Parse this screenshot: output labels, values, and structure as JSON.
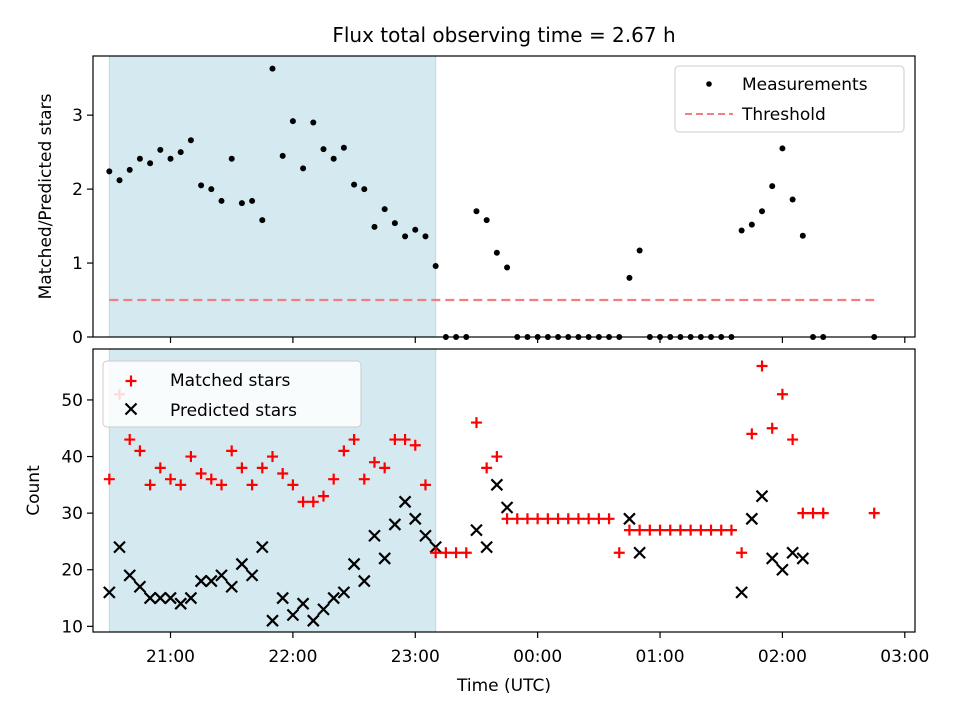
{
  "title": "Flux total observing time = 2.67 h",
  "chart_data": [
    {
      "type": "scatter",
      "panel": "top",
      "title": "Flux total observing time = 2.67 h",
      "xlabel": "",
      "ylabel": "Matched/Predicted stars",
      "xlim": [
        "20:22",
        "03:05"
      ],
      "ylim": [
        0,
        3.8
      ],
      "yticks": [
        0,
        1,
        2,
        3
      ],
      "shaded_interval": {
        "start": "20:30",
        "end": "23:10",
        "color": "#d4eaf0"
      },
      "legend": {
        "placement": "top-right",
        "entries": [
          "Measurements",
          "Threshold"
        ]
      },
      "series": [
        {
          "name": "Measurements",
          "color": "#000000",
          "marker": "dot",
          "time": [
            "20:30",
            "20:35",
            "20:40",
            "20:45",
            "20:50",
            "20:55",
            "21:00",
            "21:05",
            "21:10",
            "21:15",
            "21:20",
            "21:25",
            "21:30",
            "21:35",
            "21:40",
            "21:45",
            "21:50",
            "21:55",
            "22:00",
            "22:05",
            "22:10",
            "22:15",
            "22:20",
            "22:25",
            "22:30",
            "22:35",
            "22:40",
            "22:45",
            "22:50",
            "22:55",
            "23:00",
            "23:05",
            "23:10",
            "23:15",
            "23:20",
            "23:25",
            "23:30",
            "23:35",
            "23:40",
            "23:45",
            "23:50",
            "23:55",
            "00:00",
            "00:05",
            "00:10",
            "00:15",
            "00:20",
            "00:25",
            "00:30",
            "00:35",
            "00:40",
            "00:45",
            "00:50",
            "00:55",
            "01:00",
            "01:05",
            "01:10",
            "01:15",
            "01:20",
            "01:25",
            "01:30",
            "01:35",
            "01:40",
            "01:45",
            "01:50",
            "01:55",
            "02:00",
            "02:05",
            "02:10",
            "02:15",
            "02:20",
            "02:45"
          ],
          "values": [
            2.24,
            2.12,
            2.26,
            2.41,
            2.35,
            2.53,
            2.41,
            2.5,
            2.66,
            2.05,
            2.0,
            1.84,
            2.41,
            1.81,
            1.84,
            1.58,
            3.63,
            2.45,
            2.92,
            2.28,
            2.9,
            2.54,
            2.41,
            2.56,
            2.06,
            2.0,
            1.49,
            1.73,
            1.54,
            1.36,
            1.45,
            1.36,
            0.96,
            0,
            0,
            0,
            1.7,
            1.58,
            1.14,
            0.94,
            0,
            0,
            0,
            0,
            0,
            0,
            0,
            0,
            0,
            0,
            0,
            0.8,
            1.17,
            0,
            0,
            0,
            0,
            0,
            0,
            0,
            0,
            0,
            1.44,
            1.52,
            1.7,
            2.04,
            2.55,
            1.86,
            1.37,
            0,
            0,
            0
          ]
        },
        {
          "name": "Threshold",
          "color": "#f08080",
          "style": "dashed",
          "x": [
            "20:30",
            "02:45"
          ],
          "values": [
            0.5,
            0.5
          ]
        }
      ]
    },
    {
      "type": "scatter",
      "panel": "bottom",
      "xlabel": "Time (UTC)",
      "ylabel": "Count",
      "xlim": [
        "20:22",
        "03:05"
      ],
      "ylim": [
        9,
        59
      ],
      "xticks": [
        "21:00",
        "22:00",
        "23:00",
        "00:00",
        "01:00",
        "02:00",
        "03:00"
      ],
      "yticks": [
        10,
        20,
        30,
        40,
        50
      ],
      "shaded_interval": {
        "start": "20:30",
        "end": "23:10",
        "color": "#d4eaf0"
      },
      "legend": {
        "placement": "top-left",
        "entries": [
          "Matched stars",
          "Predicted stars"
        ]
      },
      "series": [
        {
          "name": "Matched stars",
          "color": "#ff0000",
          "marker": "plus",
          "time": [
            "20:30",
            "20:35",
            "20:40",
            "20:45",
            "20:50",
            "20:55",
            "21:00",
            "21:05",
            "21:10",
            "21:15",
            "21:20",
            "21:25",
            "21:30",
            "21:35",
            "21:40",
            "21:45",
            "21:50",
            "21:55",
            "22:00",
            "22:05",
            "22:10",
            "22:15",
            "22:20",
            "22:25",
            "22:30",
            "22:35",
            "22:40",
            "22:45",
            "22:50",
            "22:55",
            "23:00",
            "23:05",
            "23:10",
            "23:15",
            "23:20",
            "23:25",
            "23:30",
            "23:35",
            "23:40",
            "23:45",
            "23:50",
            "23:55",
            "00:00",
            "00:05",
            "00:10",
            "00:15",
            "00:20",
            "00:25",
            "00:30",
            "00:35",
            "00:40",
            "00:45",
            "00:50",
            "00:55",
            "01:00",
            "01:05",
            "01:10",
            "01:15",
            "01:20",
            "01:25",
            "01:30",
            "01:35",
            "01:40",
            "01:45",
            "01:50",
            "01:55",
            "02:00",
            "02:05",
            "02:10",
            "02:15",
            "02:20",
            "02:45"
          ],
          "values": [
            36,
            51,
            43,
            41,
            35,
            38,
            36,
            35,
            40,
            37,
            36,
            35,
            41,
            38,
            35,
            38,
            40,
            37,
            35,
            32,
            32,
            33,
            36,
            41,
            43,
            36,
            39,
            38,
            43,
            43,
            42,
            35,
            23,
            23,
            23,
            23,
            46,
            38,
            40,
            29,
            29,
            29,
            29,
            29,
            29,
            29,
            29,
            29,
            29,
            29,
            23,
            27,
            27,
            27,
            27,
            27,
            27,
            27,
            27,
            27,
            27,
            27,
            23,
            44,
            56,
            45,
            51,
            43,
            30,
            30,
            30,
            30
          ]
        },
        {
          "name": "Predicted stars",
          "color": "#000000",
          "marker": "x",
          "time": [
            "20:30",
            "20:35",
            "20:40",
            "20:45",
            "20:50",
            "20:55",
            "21:00",
            "21:05",
            "21:10",
            "21:15",
            "21:20",
            "21:25",
            "21:30",
            "21:35",
            "21:40",
            "21:45",
            "21:50",
            "21:55",
            "22:00",
            "22:05",
            "22:10",
            "22:15",
            "22:20",
            "22:25",
            "22:30",
            "22:35",
            "22:40",
            "22:45",
            "22:50",
            "22:55",
            "23:00",
            "23:05",
            "23:10",
            "23:30",
            "23:35",
            "23:40",
            "23:45",
            "00:45",
            "00:50",
            "01:40",
            "01:45",
            "01:50",
            "01:55",
            "02:00",
            "02:05",
            "02:10"
          ],
          "values": [
            16,
            24,
            19,
            17,
            15,
            15,
            15,
            14,
            15,
            18,
            18,
            19,
            17,
            21,
            19,
            24,
            11,
            15,
            12,
            14,
            11,
            13,
            15,
            16,
            21,
            18,
            26,
            22,
            28,
            32,
            29,
            26,
            24,
            27,
            24,
            35,
            31,
            29,
            23,
            16,
            29,
            33,
            22,
            20,
            23,
            22
          ]
        }
      ]
    }
  ]
}
